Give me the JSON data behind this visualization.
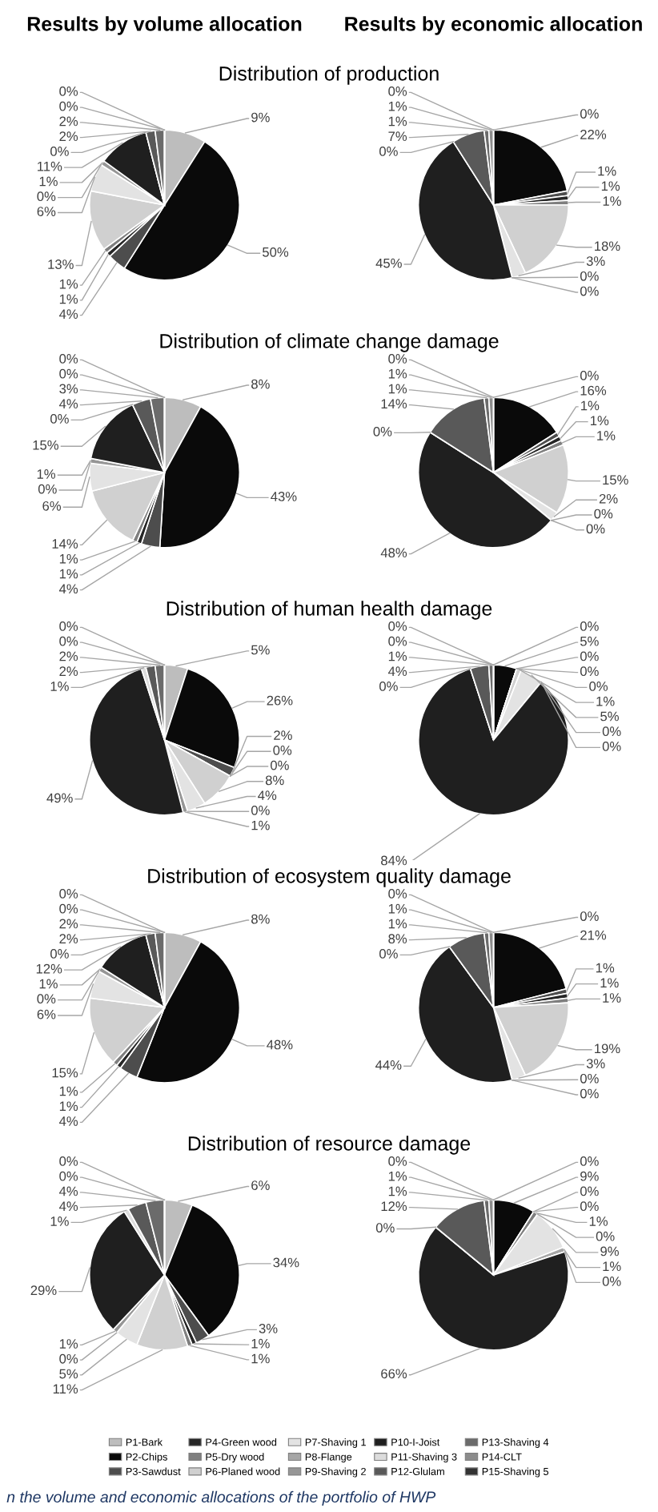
{
  "chart_data": [
    {
      "type": "pie",
      "title": "Distribution of production",
      "subtitle": "Results by volume allocation",
      "legend": "bottom",
      "categories": [
        "P1-Bark",
        "P2-Chips",
        "P3-Sawdust",
        "P4-Green wood",
        "P5-Dry wood",
        "P6-Planed wood",
        "P7-Shaving 1",
        "P8-Flange",
        "P9-Shaving 2",
        "P10-I-Joist",
        "P11-Shaving 3",
        "P12-Glulam",
        "P13-Shaving 4",
        "P14-CLT",
        "P15-Shaving 5"
      ],
      "values": [
        9,
        50,
        4,
        1,
        1,
        13,
        6,
        0,
        1,
        11,
        0,
        2,
        2,
        0,
        0
      ],
      "value_labels": [
        "9%",
        "50%",
        "4%",
        "1%",
        "1%",
        "13%",
        "6%",
        "0%",
        "1%",
        "11%",
        "0%",
        "2%",
        "2%",
        "0%",
        "0%"
      ],
      "colors": [
        "#bdbdbd",
        "#0a0a0a",
        "#4d4d4d",
        "#262626",
        "#7f7f7f",
        "#d0d0d0",
        "#e3e3e3",
        "#a6a6a6",
        "#969696",
        "#1f1f1f",
        "#dcdcdc",
        "#595959",
        "#6b6b6b",
        "#8c8c8c",
        "#333333"
      ]
    },
    {
      "type": "pie",
      "subtitle": "Results by economic allocation",
      "categories": [
        null,
        null,
        null,
        null,
        null,
        null,
        null,
        null,
        null,
        null,
        null,
        null,
        null,
        null,
        null
      ],
      "values": [
        0,
        22,
        1,
        1,
        1,
        18,
        3,
        0,
        0,
        45,
        0,
        7,
        1,
        1,
        0
      ],
      "value_labels": [
        "0%",
        "22%",
        "1%",
        "1%",
        "1%",
        "18%",
        "3%",
        "0%",
        "0%",
        "45%",
        "0%",
        "7%",
        "1%",
        "1%",
        "0%"
      ],
      "colors": [
        "#bdbdbd",
        "#0a0a0a",
        "#4d4d4d",
        "#262626",
        "#7f7f7f",
        "#d0d0d0",
        "#e3e3e3",
        "#a6a6a6",
        "#969696",
        "#1f1f1f",
        "#dcdcdc",
        "#595959",
        "#6b6b6b",
        "#8c8c8c",
        "#333333"
      ]
    },
    {
      "type": "pie",
      "title": "Distribution of climate change damage",
      "categories": [
        null,
        null,
        null,
        null,
        null,
        null,
        null,
        null,
        null,
        null,
        null,
        null,
        null,
        null,
        null
      ],
      "values": [
        8,
        43,
        4,
        1,
        1,
        14,
        6,
        0,
        1,
        15,
        0,
        4,
        3,
        0,
        0
      ],
      "value_labels": [
        "8%",
        "43%",
        "4%",
        "1%",
        "1%",
        "14%",
        "6%",
        "0%",
        "1%",
        "15%",
        "0%",
        "4%",
        "3%",
        "0%",
        "0%"
      ],
      "colors": [
        "#bdbdbd",
        "#0a0a0a",
        "#4d4d4d",
        "#262626",
        "#7f7f7f",
        "#d0d0d0",
        "#e3e3e3",
        "#a6a6a6",
        "#969696",
        "#1f1f1f",
        "#dcdcdc",
        "#595959",
        "#6b6b6b",
        "#8c8c8c",
        "#333333"
      ]
    },
    {
      "type": "pie",
      "categories": [
        null,
        null,
        null,
        null,
        null,
        null,
        null,
        null,
        null,
        null,
        null,
        null,
        null,
        null,
        null
      ],
      "values": [
        0,
        16,
        1,
        1,
        1,
        15,
        2,
        0,
        0,
        48,
        0,
        14,
        1,
        1,
        0
      ],
      "value_labels": [
        "0%",
        "16%",
        "1%",
        "1%",
        "1%",
        "15%",
        "2%",
        "0%",
        "0%",
        "48%",
        "0%",
        "14%",
        "1%",
        "1%",
        "0%"
      ],
      "colors": [
        "#bdbdbd",
        "#0a0a0a",
        "#4d4d4d",
        "#262626",
        "#7f7f7f",
        "#d0d0d0",
        "#e3e3e3",
        "#a6a6a6",
        "#969696",
        "#1f1f1f",
        "#dcdcdc",
        "#595959",
        "#6b6b6b",
        "#8c8c8c",
        "#333333"
      ]
    },
    {
      "type": "pie",
      "title": "Distribution of human health damage",
      "categories": [
        null,
        null,
        null,
        null,
        null,
        null,
        null,
        null,
        null,
        null,
        null,
        null,
        null,
        null,
        null
      ],
      "values": [
        5,
        26,
        2,
        0,
        0,
        8,
        4,
        0,
        1,
        49,
        1,
        2,
        2,
        0,
        0
      ],
      "value_labels": [
        "5%",
        "26%",
        "2%",
        "0%",
        "0%",
        "8%",
        "4%",
        "0%",
        "1%",
        "49%",
        "1%",
        "2%",
        "2%",
        "0%",
        "0%"
      ],
      "colors": [
        "#bdbdbd",
        "#0a0a0a",
        "#4d4d4d",
        "#262626",
        "#7f7f7f",
        "#d0d0d0",
        "#e3e3e3",
        "#a6a6a6",
        "#969696",
        "#1f1f1f",
        "#dcdcdc",
        "#595959",
        "#6b6b6b",
        "#8c8c8c",
        "#333333"
      ]
    },
    {
      "type": "pie",
      "categories": [
        null,
        null,
        null,
        null,
        null,
        null,
        null,
        null,
        null,
        null,
        null,
        null,
        null,
        null,
        null
      ],
      "values": [
        0,
        5,
        0,
        0,
        0,
        1,
        5,
        0,
        0,
        84,
        0,
        4,
        1,
        0,
        0
      ],
      "value_labels": [
        "0%",
        "5%",
        "0%",
        "0%",
        "0%",
        "1%",
        "5%",
        "0%",
        "0%",
        "84%",
        "0%",
        "4%",
        "1%",
        "0%",
        "0%"
      ],
      "colors": [
        "#bdbdbd",
        "#0a0a0a",
        "#4d4d4d",
        "#262626",
        "#7f7f7f",
        "#d0d0d0",
        "#e3e3e3",
        "#a6a6a6",
        "#969696",
        "#1f1f1f",
        "#dcdcdc",
        "#595959",
        "#6b6b6b",
        "#8c8c8c",
        "#333333"
      ]
    },
    {
      "type": "pie",
      "title": "Distribution of ecosystem quality damage",
      "categories": [
        null,
        null,
        null,
        null,
        null,
        null,
        null,
        null,
        null,
        null,
        null,
        null,
        null,
        null,
        null
      ],
      "values": [
        8,
        48,
        4,
        1,
        1,
        15,
        6,
        0,
        1,
        12,
        0,
        2,
        2,
        0,
        0
      ],
      "value_labels": [
        "8%",
        "48%",
        "4%",
        "1%",
        "1%",
        "15%",
        "6%",
        "0%",
        "1%",
        "12%",
        "0%",
        "2%",
        "2%",
        "0%",
        "0%"
      ],
      "colors": [
        "#bdbdbd",
        "#0a0a0a",
        "#4d4d4d",
        "#262626",
        "#7f7f7f",
        "#d0d0d0",
        "#e3e3e3",
        "#a6a6a6",
        "#969696",
        "#1f1f1f",
        "#dcdcdc",
        "#595959",
        "#6b6b6b",
        "#8c8c8c",
        "#333333"
      ]
    },
    {
      "type": "pie",
      "categories": [
        null,
        null,
        null,
        null,
        null,
        null,
        null,
        null,
        null,
        null,
        null,
        null,
        null,
        null,
        null
      ],
      "values": [
        0,
        21,
        1,
        1,
        1,
        19,
        3,
        0,
        0,
        44,
        0,
        8,
        1,
        1,
        0
      ],
      "value_labels": [
        "0%",
        "21%",
        "1%",
        "1%",
        "1%",
        "19%",
        "3%",
        "0%",
        "0%",
        "44%",
        "0%",
        "8%",
        "1%",
        "1%",
        "0%"
      ],
      "colors": [
        "#bdbdbd",
        "#0a0a0a",
        "#4d4d4d",
        "#262626",
        "#7f7f7f",
        "#d0d0d0",
        "#e3e3e3",
        "#a6a6a6",
        "#969696",
        "#1f1f1f",
        "#dcdcdc",
        "#595959",
        "#6b6b6b",
        "#8c8c8c",
        "#333333"
      ]
    },
    {
      "type": "pie",
      "title": "Distribution of resource damage",
      "categories": [
        null,
        null,
        null,
        null,
        null,
        null,
        null,
        null,
        null,
        null,
        null,
        null,
        null,
        null,
        null
      ],
      "values": [
        6,
        34,
        3,
        1,
        1,
        11,
        5,
        0,
        1,
        29,
        1,
        4,
        4,
        0,
        0
      ],
      "value_labels": [
        "6%",
        "34%",
        "3%",
        "1%",
        "1%",
        "11%",
        "5%",
        "0%",
        "1%",
        "29%",
        "1%",
        "4%",
        "4%",
        "0%",
        "0%"
      ],
      "colors": [
        "#bdbdbd",
        "#0a0a0a",
        "#4d4d4d",
        "#262626",
        "#7f7f7f",
        "#d0d0d0",
        "#e3e3e3",
        "#a6a6a6",
        "#969696",
        "#1f1f1f",
        "#dcdcdc",
        "#595959",
        "#6b6b6b",
        "#8c8c8c",
        "#333333"
      ]
    },
    {
      "type": "pie",
      "annotations": [
        "n the volume and economic allocations of the portfolio of HWP"
      ],
      "categories": [
        null,
        null,
        null,
        null,
        null,
        null,
        null,
        null,
        null,
        null,
        null,
        null,
        null,
        null,
        null
      ],
      "values": [
        0,
        9,
        0,
        0,
        1,
        0,
        9,
        1,
        0,
        66,
        0,
        12,
        1,
        1,
        0
      ],
      "value_labels": [
        "0%",
        "9%",
        "0%",
        "0%",
        "1%",
        "0%",
        "9%",
        "1%",
        "0%",
        "66%",
        "0%",
        "12%",
        "1%",
        "1%",
        "0%"
      ],
      "colors": [
        "#bdbdbd",
        "#0a0a0a",
        "#4d4d4d",
        "#262626",
        "#7f7f7f",
        "#d0d0d0",
        "#e3e3e3",
        "#a6a6a6",
        "#969696",
        "#1f1f1f",
        "#dcdcdc",
        "#595959",
        "#6b6b6b",
        "#8c8c8c",
        "#333333"
      ]
    }
  ]
}
